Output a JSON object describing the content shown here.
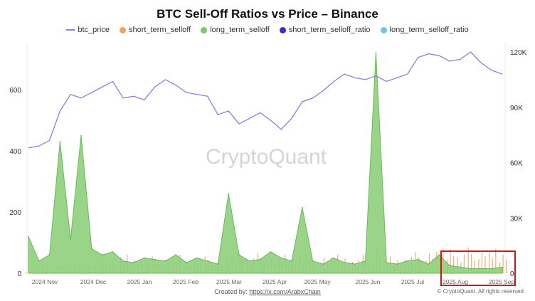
{
  "chart_data": {
    "type": "bar",
    "title": "BTC Sell-Off Ratios vs Price – Binance",
    "legend": [
      {
        "name": "btc_price",
        "color": "#8b7ee8",
        "marker": "line"
      },
      {
        "name": "short_term_selloff",
        "color": "#f0a060",
        "marker": "dot"
      },
      {
        "name": "long_term_selloff",
        "color": "#7cc86a",
        "marker": "dot"
      },
      {
        "name": "short_term_selloff_ratio",
        "color": "#3a2bd8",
        "marker": "dot"
      },
      {
        "name": "long_term_selloff_ratio",
        "color": "#6ec6e6",
        "marker": "dot"
      }
    ],
    "legend_position": "top",
    "x_tick_labels": [
      "2024 Nov",
      "2024 Dec",
      "2025 Jan",
      "2025 Feb",
      "2025 Mar",
      "2025 Apr",
      "2025 May",
      "2025 Jun",
      "2025 Jul",
      "2025 Aug",
      "2025 Sep"
    ],
    "y_left": {
      "ticks": [
        0,
        200,
        400,
        600
      ],
      "labels": [
        "0",
        "200",
        "400",
        "600"
      ],
      "range": [
        0,
        720
      ]
    },
    "y_right": {
      "ticks": [
        0,
        30000,
        60000,
        90000,
        120000
      ],
      "labels": [
        "0",
        "30K",
        "60K",
        "90K",
        "120K"
      ],
      "range": [
        0,
        121000
      ]
    },
    "x_start": "2024-10-21",
    "x_end": "2025-09-01",
    "step_days": 7,
    "series": [
      {
        "name": "btc_price",
        "axis": "right",
        "values": [
          68000,
          69000,
          72000,
          88000,
          97000,
          95000,
          98000,
          101000,
          104000,
          95000,
          96000,
          94000,
          101000,
          105000,
          102000,
          98000,
          97000,
          96000,
          86000,
          88000,
          81000,
          84000,
          87000,
          83000,
          78000,
          84000,
          93000,
          95000,
          99000,
          104000,
          108000,
          106000,
          105000,
          107000,
          104000,
          106000,
          108000,
          117000,
          119000,
          118000,
          115000,
          116000,
          120000,
          114000,
          110000,
          108000
        ]
      },
      {
        "name": "long_term_selloff",
        "axis": "left",
        "values": [
          120,
          40,
          60,
          430,
          110,
          450,
          80,
          60,
          70,
          40,
          35,
          50,
          45,
          40,
          60,
          35,
          50,
          40,
          30,
          260,
          60,
          40,
          45,
          70,
          50,
          40,
          215,
          40,
          30,
          50,
          35,
          30,
          40,
          720,
          35,
          30,
          40,
          45,
          30,
          60,
          25,
          20,
          15,
          15,
          15,
          20
        ]
      },
      {
        "name": "short_term_selloff",
        "axis": "left",
        "values": [
          10,
          15,
          20,
          30,
          25,
          30,
          40,
          45,
          35,
          60,
          50,
          40,
          55,
          45,
          60,
          40,
          50,
          55,
          45,
          60,
          70,
          55,
          65,
          50,
          60,
          55,
          70,
          45,
          50,
          60,
          55,
          50,
          60,
          75,
          55,
          50,
          60,
          70,
          65,
          80,
          90,
          70,
          85,
          75,
          80,
          70
        ]
      }
    ]
  },
  "watermark": "CryptoQuant",
  "footer": {
    "created_by_label": "Created by:",
    "created_by_link": "https://x.com/ArabxChain",
    "rights": "© CryptoQuant. All rights reserved"
  }
}
